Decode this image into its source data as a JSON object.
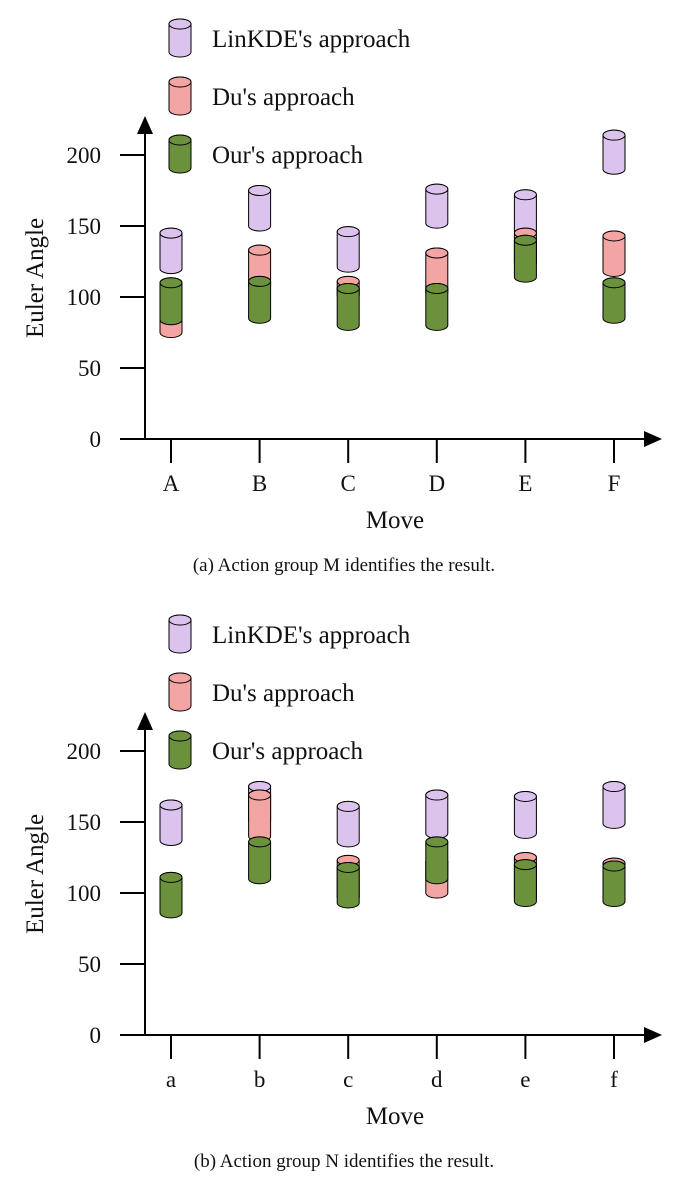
{
  "colors": {
    "LinKDE": "#dcc3ee",
    "Du": "#f3a5a3",
    "Ours": "#6b913d",
    "outline": "#000000"
  },
  "chart_data": [
    {
      "type": "floating-bar (cylinder ranges)",
      "caption": "(a)  Action group M identifies the result.",
      "xlabel": "Move",
      "ylabel": "Euler Angle",
      "ylim": [
        0,
        230
      ],
      "yticks": [
        0,
        50,
        100,
        150,
        200
      ],
      "categories": [
        "A",
        "B",
        "C",
        "D",
        "E",
        "F"
      ],
      "legend": {
        "position": "top-left",
        "entries": [
          "LinKDE's approach",
          "Du's approach",
          "Our's approach"
        ]
      },
      "series": [
        {
          "name": "LinKDE's approach",
          "key": "LinKDE",
          "ranges": [
            [
              120,
              145
            ],
            [
              150,
              175
            ],
            [
              121,
              146
            ],
            [
              152,
              176
            ],
            [
              146,
              172
            ],
            [
              190,
              214
            ]
          ]
        },
        {
          "name": "Du's approach",
          "key": "Du",
          "ranges": [
            [
              75,
              95
            ],
            [
              108,
              133
            ],
            [
              101,
              111
            ],
            [
              103,
              131
            ],
            [
              124,
              145
            ],
            [
              118,
              143
            ]
          ]
        },
        {
          "name": "Our's approach",
          "key": "Ours",
          "ranges": [
            [
              84,
              110
            ],
            [
              85,
              111
            ],
            [
              80,
              106
            ],
            [
              80,
              106
            ],
            [
              114,
              140
            ],
            [
              85,
              110
            ]
          ]
        }
      ]
    },
    {
      "type": "floating-bar (cylinder ranges)",
      "caption": "(b)  Action group N identifies the result.",
      "xlabel": "Move",
      "ylabel": "Euler Angle",
      "ylim": [
        0,
        230
      ],
      "yticks": [
        0,
        50,
        100,
        150,
        200
      ],
      "categories": [
        "a",
        "b",
        "c",
        "d",
        "e",
        "f"
      ],
      "legend": {
        "position": "top-left",
        "entries": [
          "LinKDE's approach",
          "Du's approach",
          "Our's approach"
        ]
      },
      "series": [
        {
          "name": "LinKDE's approach",
          "key": "LinKDE",
          "ranges": [
            [
              137,
              162
            ],
            [
              151,
              175
            ],
            [
              136,
              161
            ],
            [
              142,
              169
            ],
            [
              142,
              168
            ],
            [
              149,
              175
            ]
          ]
        },
        {
          "name": "Du's approach",
          "key": "Du",
          "ranges": [
            [
              89,
              110
            ],
            [
              140,
              169
            ],
            [
              97,
              123
            ],
            [
              100,
              122
            ],
            [
              97,
              125
            ],
            [
              97,
              121
            ]
          ]
        },
        {
          "name": "Our's approach",
          "key": "Ours",
          "ranges": [
            [
              86,
              111
            ],
            [
              110,
              136
            ],
            [
              93,
              118
            ],
            [
              110,
              136
            ],
            [
              94,
              120
            ],
            [
              94,
              119
            ]
          ]
        }
      ]
    }
  ]
}
